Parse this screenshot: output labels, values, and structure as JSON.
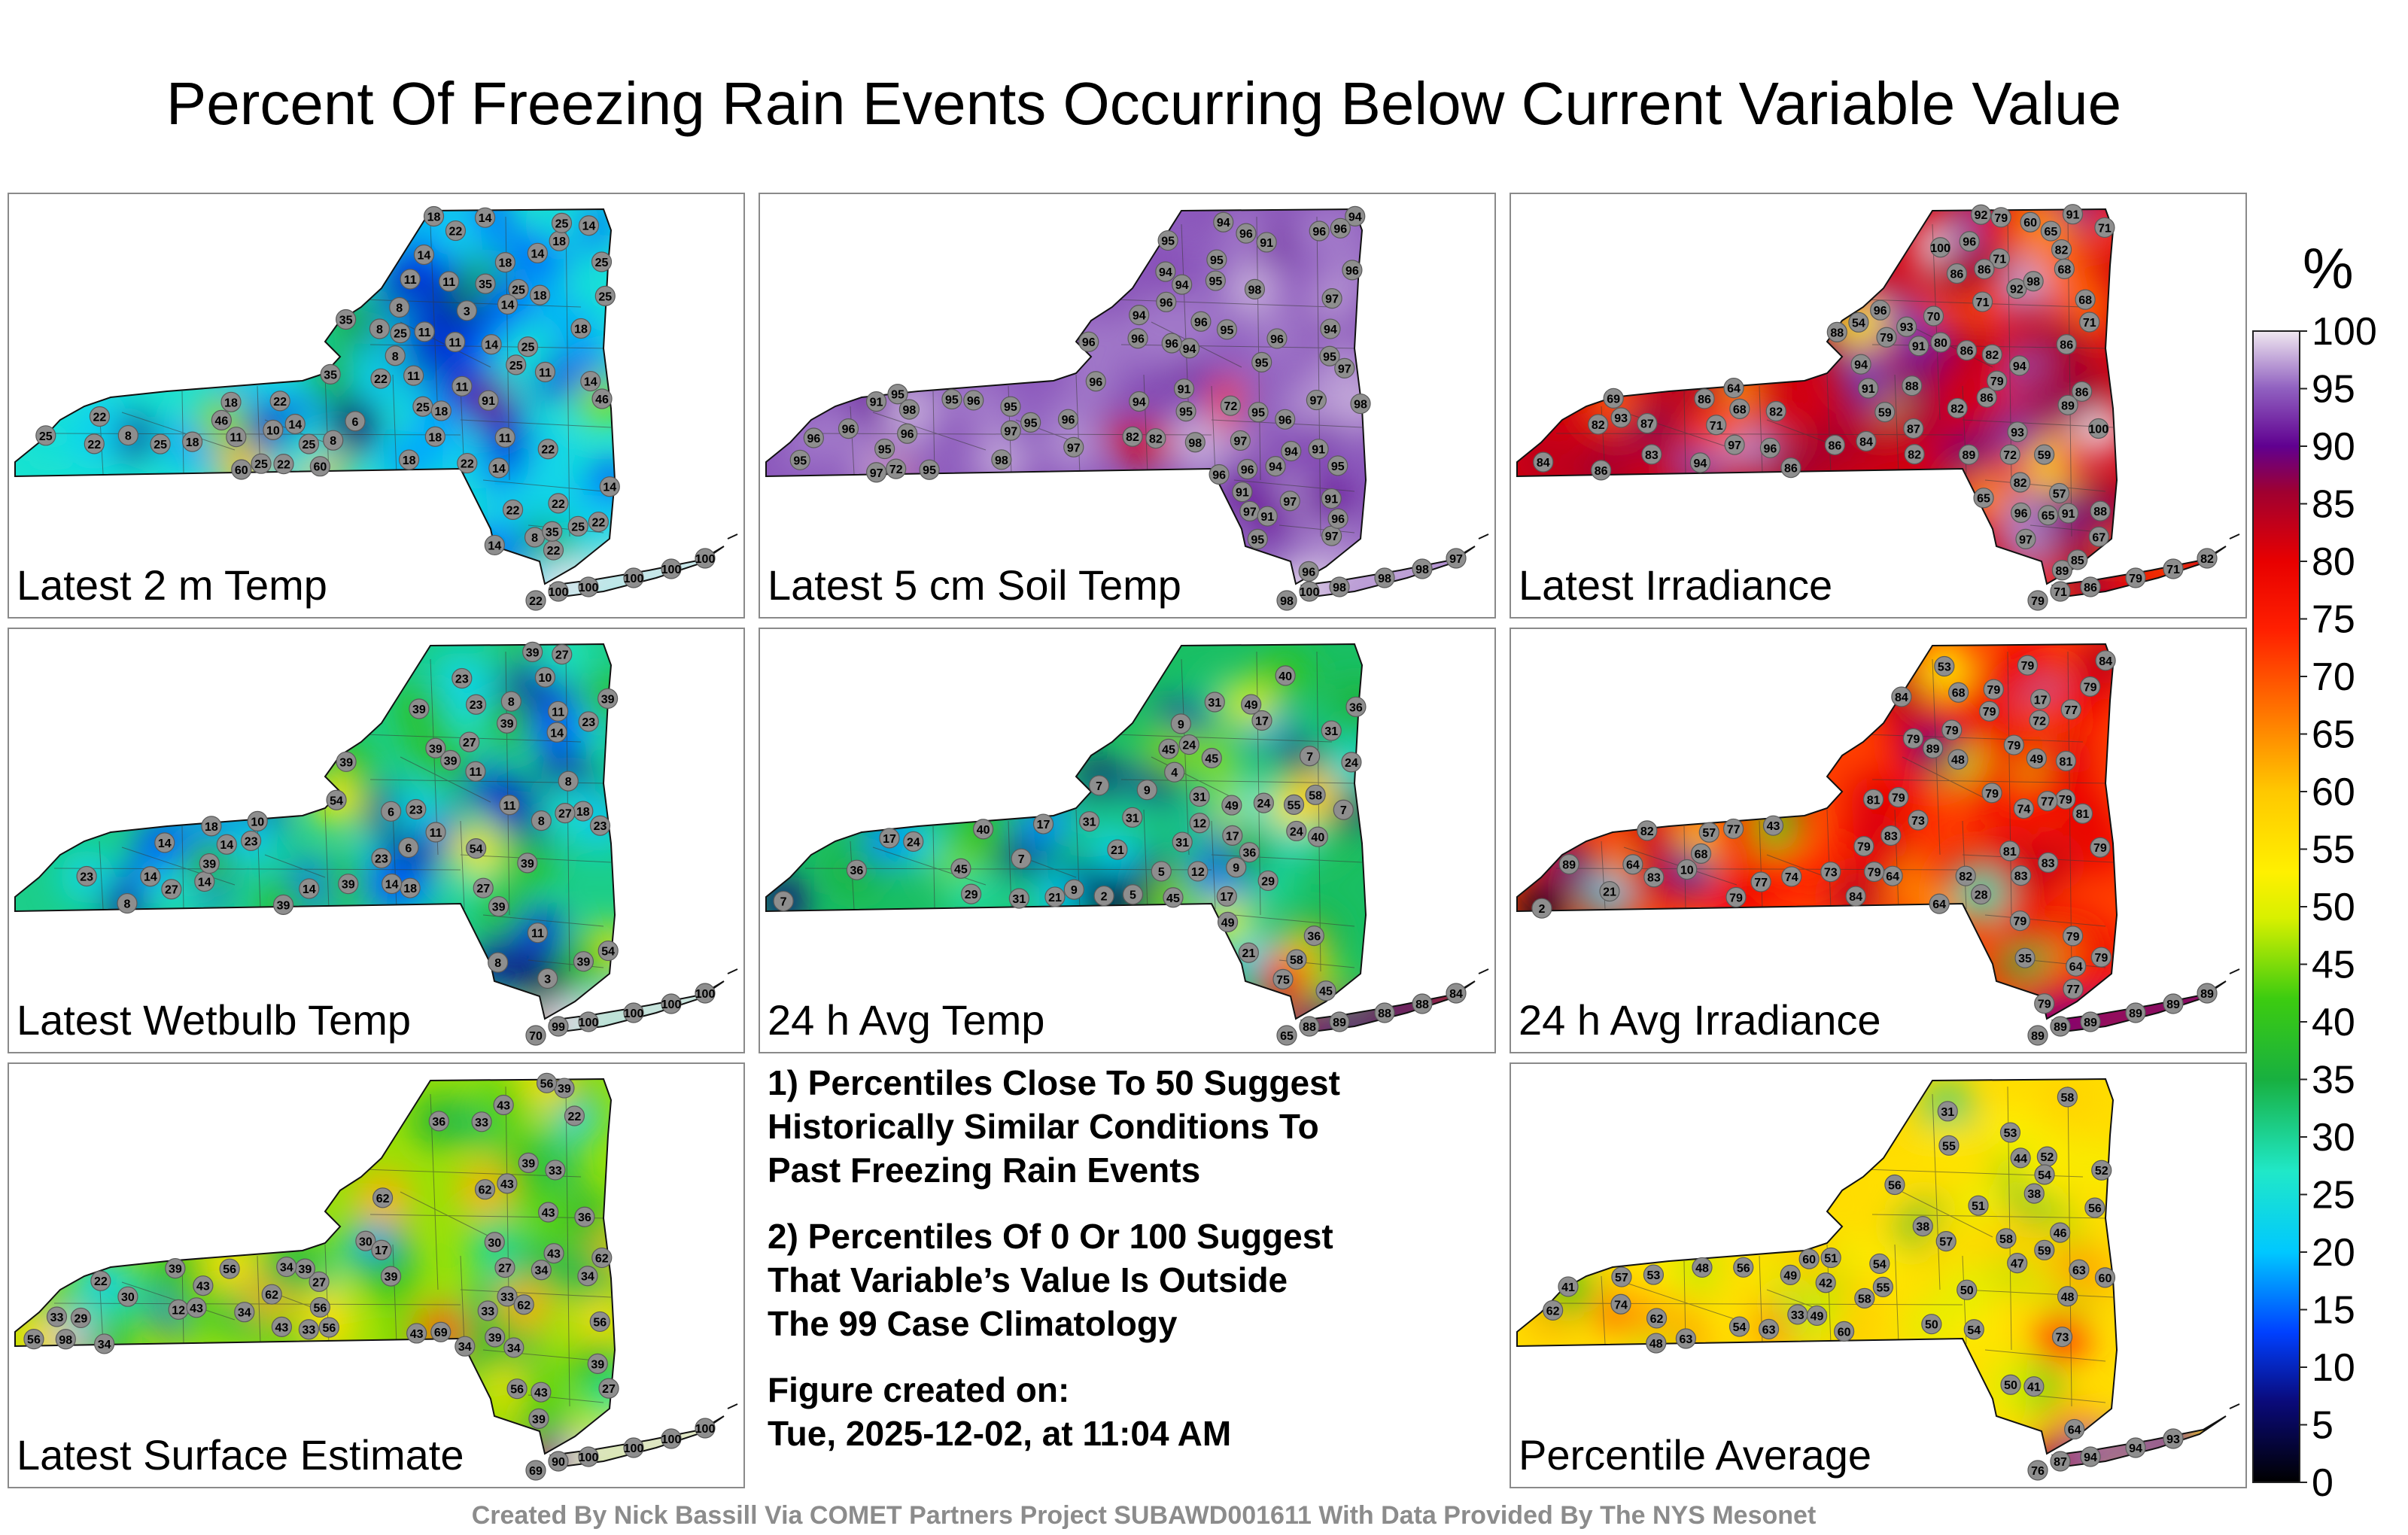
{
  "title": "Percent Of Freezing Rain Events Occurring Below Current Variable Value",
  "panels": [
    {
      "id": "temp2m",
      "label": "Latest 2 m Temp",
      "scheme": "low",
      "values": [
        11,
        8,
        8,
        14,
        11,
        3,
        6,
        18,
        14,
        8,
        11,
        18,
        25,
        11,
        14,
        8,
        8,
        25,
        18,
        22,
        14,
        8,
        22,
        22,
        25,
        22,
        18,
        25,
        18,
        14,
        14,
        11,
        14,
        25,
        25,
        18,
        22,
        18,
        22,
        14,
        11,
        11,
        18,
        35,
        18,
        22,
        25,
        14,
        11,
        22,
        25,
        46,
        14,
        22,
        10,
        14,
        11,
        25,
        25,
        60,
        18,
        22,
        35,
        35,
        25,
        22,
        46,
        25,
        35,
        25,
        22,
        60,
        91,
        22,
        100,
        100,
        100,
        100,
        100
      ]
    },
    {
      "id": "soil5cm",
      "label": "Latest 5 cm Soil Temp",
      "scheme": "high",
      "values": [
        91,
        94,
        95,
        82,
        91,
        94,
        97,
        95,
        96,
        94,
        96,
        98,
        95,
        96,
        97,
        95,
        96,
        96,
        72,
        82,
        95,
        95,
        96,
        94,
        95,
        96,
        96,
        97,
        91,
        95,
        94,
        95,
        95,
        95,
        95,
        96,
        95,
        94,
        96,
        97,
        96,
        96,
        97,
        94,
        97,
        96,
        96,
        91,
        95,
        96,
        72,
        95,
        94,
        96,
        97,
        94,
        96,
        91,
        95,
        97,
        91,
        91,
        96,
        96,
        94,
        95,
        96,
        97,
        96,
        98,
        98,
        98,
        98,
        97,
        98,
        100,
        98,
        98,
        98,
        97
      ]
    },
    {
      "id": "irradiance",
      "label": "Latest Irradiance",
      "scheme": "red",
      "values": [
        93,
        96,
        82,
        86,
        68,
        70,
        88,
        71,
        59,
        65,
        94,
        97,
        72,
        86,
        80,
        86,
        57,
        60,
        59,
        71,
        89,
        89,
        84,
        96,
        67,
        65,
        64,
        83,
        71,
        91,
        91,
        86,
        92,
        87,
        87,
        91,
        82,
        79,
        100,
        100,
        96,
        92,
        93,
        86,
        98,
        82,
        86,
        65,
        84,
        82,
        94,
        89,
        86,
        82,
        97,
        79,
        71,
        91,
        94,
        86,
        82,
        68,
        85,
        96,
        88,
        88,
        93,
        68,
        69,
        71,
        79,
        54,
        86,
        86,
        82,
        79,
        71,
        86,
        79,
        71,
        82
      ]
    },
    {
      "id": "wetbulb",
      "label": "Latest Wetbulb Temp",
      "scheme": "low",
      "values": [
        10,
        8,
        8,
        14,
        3,
        6,
        23,
        18,
        11,
        18,
        11,
        11,
        14,
        8,
        8,
        39,
        23,
        23,
        6,
        8,
        39,
        23,
        14,
        14,
        11,
        23,
        27,
        23,
        39,
        27,
        18,
        11,
        39,
        39,
        14,
        10,
        14,
        23,
        39,
        27,
        39,
        54,
        23,
        27,
        39,
        39,
        27,
        54,
        14,
        39,
        39,
        39,
        39,
        54,
        70,
        99,
        100,
        100,
        100,
        100
      ]
    },
    {
      "id": "avgtemp",
      "label": "24 h Avg Temp",
      "scheme": "mid",
      "values": [
        9,
        9,
        4,
        17,
        29,
        9,
        5,
        2,
        7,
        31,
        12,
        7,
        17,
        5,
        7,
        24,
        40,
        9,
        7,
        7,
        24,
        36,
        12,
        21,
        45,
        40,
        31,
        24,
        31,
        31,
        36,
        21,
        45,
        49,
        17,
        17,
        24,
        31,
        40,
        29,
        45,
        31,
        17,
        31,
        21,
        24,
        55,
        49,
        36,
        49,
        36,
        45,
        45,
        58,
        58,
        75,
        65,
        88,
        89,
        88,
        88,
        84
      ]
    },
    {
      "id": "avgirr",
      "label": "24 h Avg Irradiance",
      "scheme": "red",
      "values": [
        49,
        77,
        83,
        79,
        43,
        79,
        79,
        81,
        68,
        35,
        83,
        64,
        2,
        21,
        10,
        81,
        79,
        64,
        48,
        17,
        79,
        74,
        74,
        79,
        73,
        77,
        68,
        83,
        79,
        53,
        57,
        64,
        73,
        77,
        79,
        81,
        83,
        79,
        79,
        84,
        82,
        77,
        79,
        72,
        79,
        79,
        79,
        79,
        81,
        84,
        89,
        77,
        64,
        82,
        79,
        79,
        79,
        89,
        28,
        84,
        89,
        89,
        89,
        89,
        89,
        89
      ]
    },
    {
      "id": "surface",
      "label": "Latest Surface Estimate",
      "scheme": "mid",
      "values": [
        30,
        22,
        34,
        27,
        39,
        30,
        12,
        17,
        34,
        43,
        33,
        27,
        22,
        27,
        56,
        62,
        43,
        33,
        36,
        33,
        56,
        43,
        33,
        39,
        39,
        34,
        29,
        56,
        36,
        39,
        43,
        56,
        39,
        43,
        33,
        34,
        62,
        98,
        69,
        30,
        43,
        34,
        33,
        62,
        56,
        39,
        34,
        39,
        34,
        39,
        43,
        43,
        62,
        56,
        62,
        43,
        56,
        69,
        90,
        100,
        100,
        100,
        100
      ]
    },
    {
      "id": "average",
      "label": "Percentile Average",
      "scheme": "mid",
      "values": [
        42,
        46,
        44,
        62,
        41,
        53,
        48,
        38,
        38,
        48,
        54,
        47,
        33,
        31,
        41,
        53,
        63,
        60,
        59,
        51,
        50,
        55,
        52,
        54,
        49,
        50,
        57,
        55,
        56,
        60,
        58,
        52,
        63,
        48,
        51,
        74,
        56,
        57,
        49,
        62,
        54,
        58,
        54,
        60,
        56,
        58,
        50,
        64,
        63,
        73,
        76,
        87,
        94,
        94,
        93
      ]
    }
  ],
  "notes": [
    "1) Percentiles Close To 50 Suggest\nHistorically Similar Conditions To\nPast Freezing Rain Events",
    "2) Percentiles Of 0 Or 100 Suggest\nThat Variable’s Value Is Outside\nThe 99 Case Climatology",
    "Figure created on:\nTue, 2025-12-02, at 11:04 AM"
  ],
  "colorbar": {
    "unit": "%",
    "ticks": [
      0,
      5,
      10,
      15,
      20,
      25,
      30,
      35,
      40,
      45,
      50,
      55,
      60,
      65,
      70,
      75,
      80,
      85,
      90,
      95,
      100
    ]
  },
  "credit": "Created By Nick Bassill Via COMET Partners Project SUBAWD001611 With Data Provided By The NYS Mesonet"
}
